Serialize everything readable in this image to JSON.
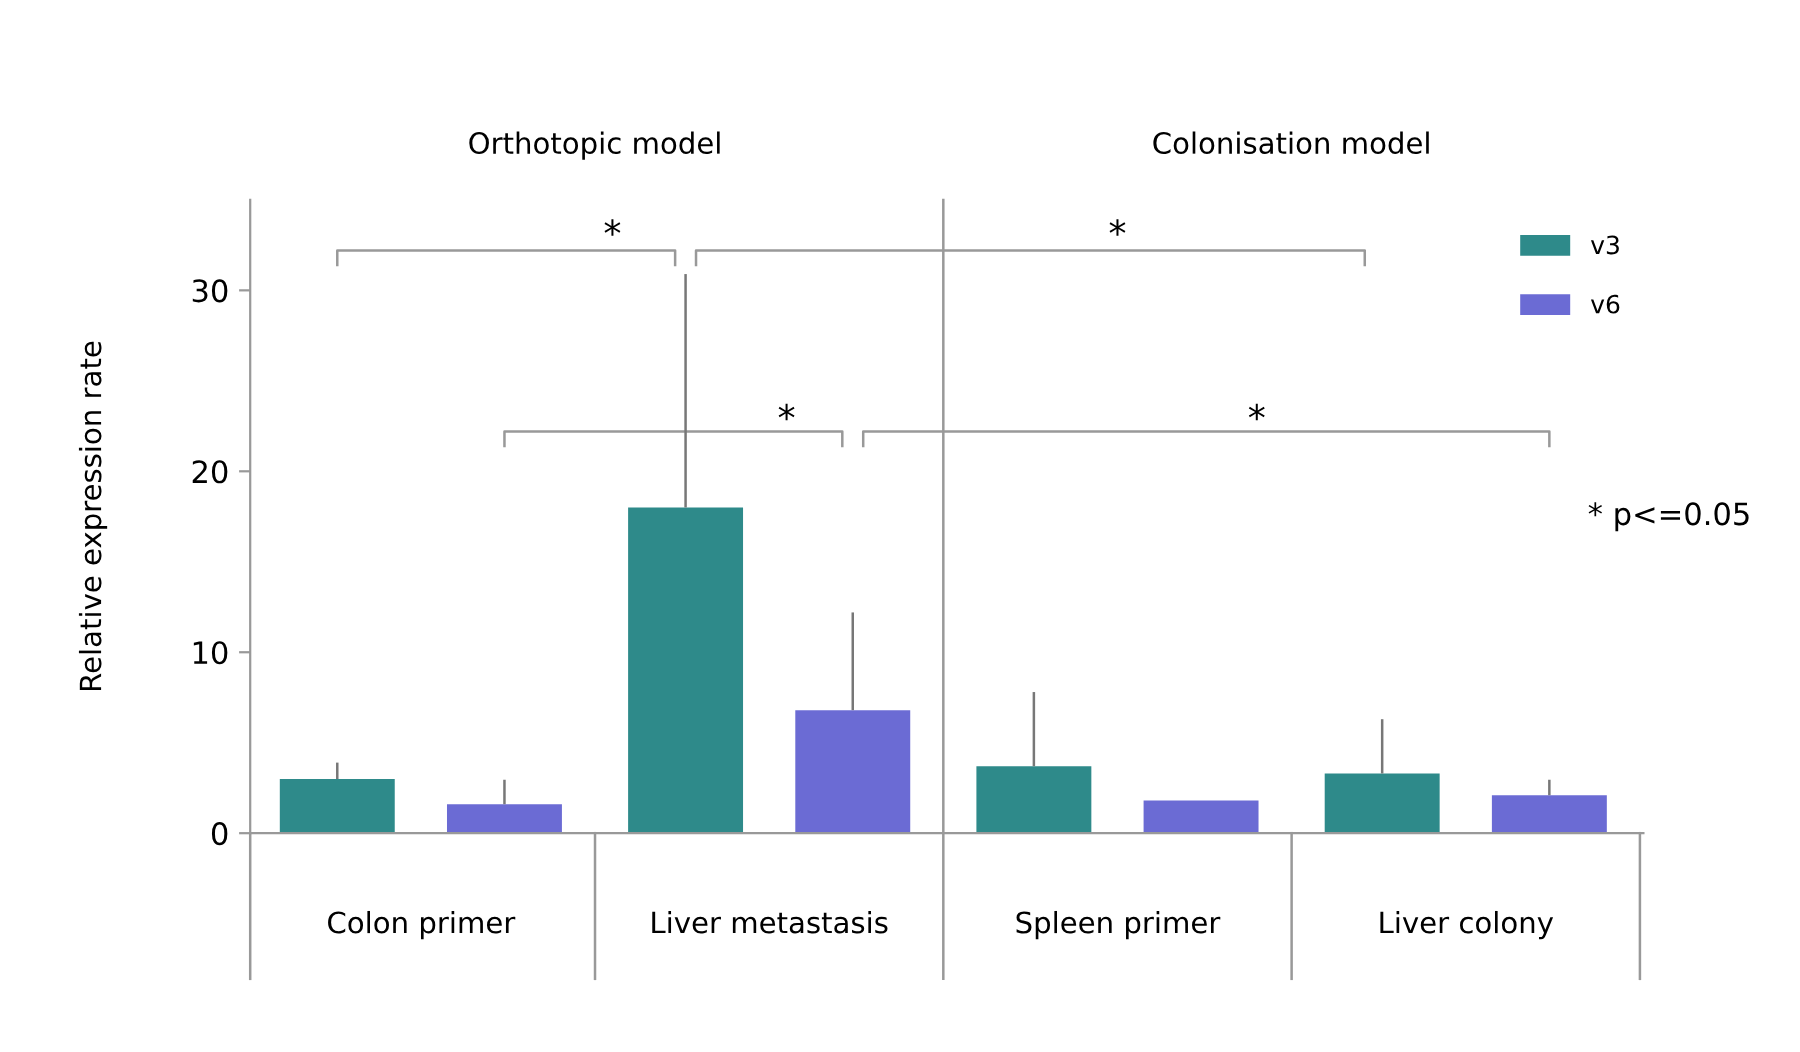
{
  "chart_data": {
    "type": "bar",
    "ylabel": "Relative expression rate",
    "categories": [
      "Colon primer",
      "Liver metastasis",
      "Spleen primer",
      "Liver colony"
    ],
    "series": [
      {
        "name": "v3",
        "color": "#2e8a8a",
        "values": [
          3.0,
          18.0,
          3.7,
          3.3
        ],
        "errors": [
          [
            3.0,
            3.9
          ],
          [
            18.0,
            30.9
          ],
          [
            3.7,
            7.8
          ],
          [
            3.3,
            6.3
          ]
        ]
      },
      {
        "name": "v6",
        "color": "#6b6bd4",
        "values": [
          1.6,
          6.8,
          1.8,
          2.1
        ],
        "errors": [
          [
            1.6,
            2.95
          ],
          [
            6.8,
            12.2
          ],
          null,
          [
            2.1,
            2.95
          ]
        ]
      }
    ],
    "ylim": [
      0,
      35
    ],
    "yticks": [
      0,
      10,
      20,
      30
    ],
    "grid": false,
    "legend": "top right",
    "annotations": [
      "Orthotopic model",
      "Colonisation model",
      "*",
      "*",
      "*",
      "*",
      "* p<=0.05"
    ]
  }
}
